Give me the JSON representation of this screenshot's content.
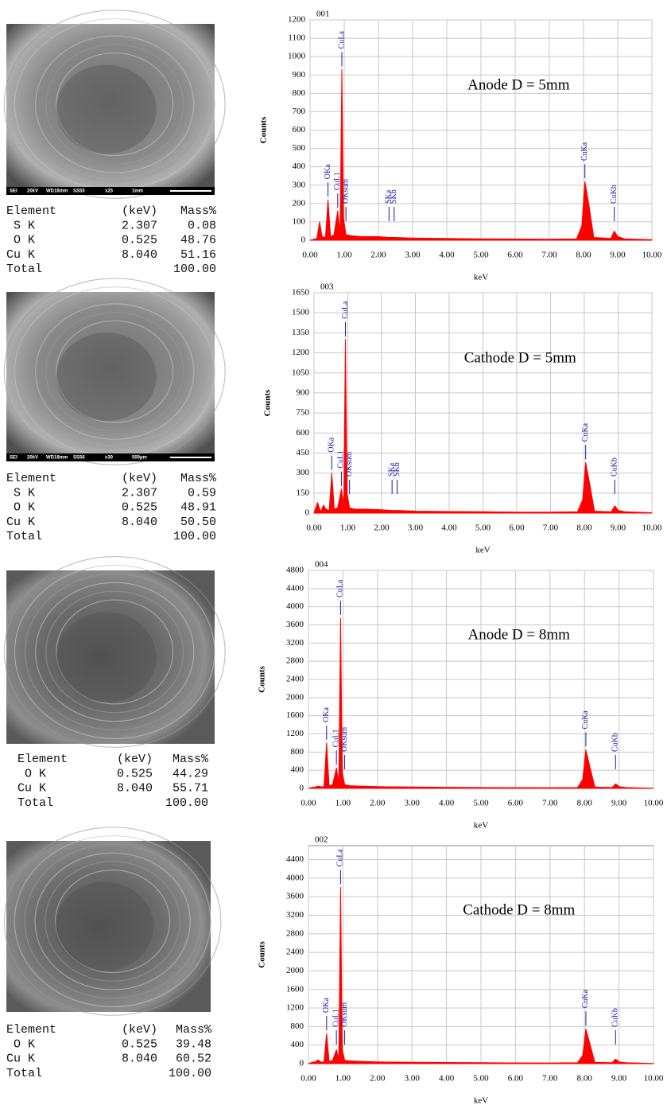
{
  "chart_data": [
    {
      "type": "area",
      "title": "001",
      "annotation": "Anode D = 5mm",
      "y_label": "Counts",
      "x_label": "keV",
      "color": "#ff0000",
      "peak_color": "#1a1aaa",
      "grid": true,
      "x": [
        0,
        0.1,
        0.2,
        0.28,
        0.35,
        0.45,
        0.525,
        0.6,
        0.7,
        0.81,
        0.88,
        0.93,
        0.98,
        1.05,
        1.2,
        1.5,
        2,
        2.3,
        2.5,
        3,
        4,
        5,
        6,
        7,
        7.8,
        7.95,
        8.04,
        8.15,
        8.3,
        8.8,
        8.9,
        9.0,
        9.2,
        10
      ],
      "values": [
        0,
        5,
        10,
        100,
        20,
        15,
        220,
        20,
        30,
        160,
        40,
        930,
        120,
        30,
        25,
        20,
        20,
        15,
        15,
        12,
        10,
        8,
        7,
        6,
        8,
        80,
        320,
        200,
        15,
        10,
        50,
        20,
        8,
        3
      ],
      "peaks": [
        {
          "label": "OKa",
          "x": 0.525
        },
        {
          "label": "CuL1",
          "x": 0.81
        },
        {
          "label": "CuLa",
          "x": 0.93
        },
        {
          "label": "OKsum",
          "x": 1.05
        },
        {
          "label": "SKa",
          "x": 2.31
        },
        {
          "label": "SKb",
          "x": 2.46
        },
        {
          "label": "CuKa",
          "x": 8.04
        },
        {
          "label": "CuKb",
          "x": 8.9
        }
      ],
      "xlim": [
        0,
        10
      ],
      "ylim": [
        0,
        1200
      ],
      "xticks": [
        {
          "value": 0,
          "label": "0.00"
        },
        {
          "value": 1,
          "label": "1.00"
        },
        {
          "value": 2,
          "label": "2.00"
        },
        {
          "value": 3,
          "label": "3.00"
        },
        {
          "value": 4,
          "label": "4.00"
        },
        {
          "value": 5,
          "label": "5.00"
        },
        {
          "value": 6,
          "label": "6.00"
        },
        {
          "value": 7,
          "label": "7.00"
        },
        {
          "value": 8,
          "label": "8.00"
        },
        {
          "value": 9,
          "label": "9.00"
        },
        {
          "value": 10,
          "label": "10.00"
        }
      ],
      "yticks": [
        0,
        100,
        200,
        300,
        400,
        500,
        600,
        700,
        800,
        900,
        1000,
        1100,
        1200
      ]
    },
    {
      "type": "area",
      "title": "003",
      "annotation": "Cathode D = 5mm",
      "y_label": "Counts",
      "x_label": "keV",
      "color": "#ff0000",
      "peak_color": "#1a1aaa",
      "grid": true,
      "x": [
        0,
        0.1,
        0.2,
        0.28,
        0.35,
        0.45,
        0.525,
        0.6,
        0.7,
        0.81,
        0.88,
        0.93,
        0.98,
        1.05,
        1.2,
        1.5,
        2,
        2.3,
        2.5,
        3,
        4,
        5,
        6,
        7,
        7.8,
        7.95,
        8.04,
        8.15,
        8.3,
        8.8,
        8.9,
        9.0,
        9.2,
        10
      ],
      "values": [
        0,
        80,
        10,
        60,
        30,
        20,
        300,
        30,
        40,
        180,
        60,
        1300,
        150,
        40,
        30,
        30,
        25,
        20,
        20,
        15,
        12,
        10,
        8,
        8,
        10,
        100,
        380,
        230,
        15,
        10,
        55,
        20,
        10,
        3
      ],
      "peaks": [
        {
          "label": "OKa",
          "x": 0.525
        },
        {
          "label": "CuL1",
          "x": 0.81
        },
        {
          "label": "CuLa",
          "x": 0.93
        },
        {
          "label": "OKsum",
          "x": 1.05
        },
        {
          "label": "SKa",
          "x": 2.31
        },
        {
          "label": "SKb",
          "x": 2.46
        },
        {
          "label": "CuKa",
          "x": 8.04
        },
        {
          "label": "CuKb",
          "x": 8.9
        }
      ],
      "xlim": [
        0,
        10
      ],
      "ylim": [
        0,
        1650
      ],
      "xticks": [
        {
          "value": 0,
          "label": "0.00"
        },
        {
          "value": 1,
          "label": "1.00"
        },
        {
          "value": 2,
          "label": "2.00"
        },
        {
          "value": 3,
          "label": "3.00"
        },
        {
          "value": 4,
          "label": "4.00"
        },
        {
          "value": 5,
          "label": "5.00"
        },
        {
          "value": 6,
          "label": "6.00"
        },
        {
          "value": 7,
          "label": "7.00"
        },
        {
          "value": 8,
          "label": "8.00"
        },
        {
          "value": 9,
          "label": "9.00"
        },
        {
          "value": 10,
          "label": "10.00"
        }
      ],
      "yticks": [
        0,
        150,
        300,
        450,
        600,
        750,
        900,
        1050,
        1200,
        1350,
        1500,
        1650
      ]
    },
    {
      "type": "area",
      "title": "004",
      "annotation": "Anode D = 8mm",
      "y_label": "Counts",
      "x_label": "keV",
      "color": "#ff0000",
      "peak_color": "#1a1aaa",
      "grid": true,
      "x": [
        0,
        0.1,
        0.2,
        0.28,
        0.35,
        0.45,
        0.525,
        0.6,
        0.7,
        0.81,
        0.88,
        0.93,
        0.98,
        1.05,
        1.2,
        1.5,
        2,
        2.3,
        2.5,
        3,
        4,
        5,
        6,
        7,
        7.8,
        7.95,
        8.04,
        8.15,
        8.3,
        8.8,
        8.9,
        9.0,
        9.2,
        10
      ],
      "values": [
        0,
        20,
        30,
        50,
        40,
        30,
        1000,
        60,
        80,
        450,
        120,
        3750,
        350,
        80,
        60,
        50,
        40,
        35,
        35,
        30,
        25,
        20,
        18,
        15,
        20,
        200,
        850,
        500,
        30,
        20,
        100,
        40,
        20,
        5
      ],
      "peaks": [
        {
          "label": "OKa",
          "x": 0.525
        },
        {
          "label": "CuL1",
          "x": 0.81
        },
        {
          "label": "CuLa",
          "x": 0.93
        },
        {
          "label": "OKsum",
          "x": 1.05
        },
        {
          "label": "CuKa",
          "x": 8.04
        },
        {
          "label": "CuKb",
          "x": 8.9
        }
      ],
      "xlim": [
        0,
        10
      ],
      "ylim": [
        0,
        4800
      ],
      "xticks": [
        {
          "value": 0,
          "label": "0.00"
        },
        {
          "value": 1,
          "label": "1.00"
        },
        {
          "value": 2,
          "label": "2.00"
        },
        {
          "value": 3,
          "label": "3.00"
        },
        {
          "value": 4,
          "label": "4.00"
        },
        {
          "value": 5,
          "label": "5.00"
        },
        {
          "value": 6,
          "label": "6.00"
        },
        {
          "value": 7,
          "label": "7.00"
        },
        {
          "value": 8,
          "label": "8.00"
        },
        {
          "value": 9,
          "label": "9.00"
        },
        {
          "value": 10,
          "label": "10.00"
        }
      ],
      "yticks": [
        0,
        400,
        800,
        1200,
        1600,
        2000,
        2400,
        2800,
        3200,
        3600,
        4000,
        4400,
        4800
      ]
    },
    {
      "type": "area",
      "title": "002",
      "annotation": "Cathode D = 8mm",
      "y_label": "Counts",
      "x_label": "keV",
      "color": "#ff0000",
      "peak_color": "#1a1aaa",
      "grid": true,
      "x": [
        0,
        0.1,
        0.2,
        0.28,
        0.35,
        0.45,
        0.525,
        0.6,
        0.7,
        0.81,
        0.88,
        0.93,
        0.98,
        1.05,
        1.2,
        1.5,
        2,
        2.3,
        2.5,
        3,
        4,
        5,
        6,
        7,
        7.8,
        7.95,
        8.04,
        8.15,
        8.3,
        8.8,
        8.9,
        9.0,
        9.2,
        10
      ],
      "values": [
        0,
        30,
        40,
        80,
        40,
        30,
        650,
        50,
        70,
        300,
        90,
        3800,
        300,
        70,
        60,
        50,
        40,
        35,
        35,
        30,
        25,
        20,
        18,
        15,
        20,
        180,
        750,
        450,
        30,
        20,
        100,
        40,
        20,
        5
      ],
      "peaks": [
        {
          "label": "OKa",
          "x": 0.525
        },
        {
          "label": "CuL1",
          "x": 0.81
        },
        {
          "label": "CuLa",
          "x": 0.93
        },
        {
          "label": "OKsum",
          "x": 1.05
        },
        {
          "label": "CuKa",
          "x": 8.04
        },
        {
          "label": "CuKb",
          "x": 8.9
        }
      ],
      "xlim": [
        0,
        10
      ],
      "ylim": [
        0,
        4700
      ],
      "xticks": [
        {
          "value": 0,
          "label": "0.00"
        },
        {
          "value": 1,
          "label": "1.00"
        },
        {
          "value": 2,
          "label": "2.00"
        },
        {
          "value": 3,
          "label": "3.00"
        },
        {
          "value": 4,
          "label": "4.00"
        },
        {
          "value": 5,
          "label": "5.00"
        },
        {
          "value": 6,
          "label": "6.00"
        },
        {
          "value": 7,
          "label": "7.00"
        },
        {
          "value": 8,
          "label": "8.00"
        },
        {
          "value": 9,
          "label": "9.00"
        },
        {
          "value": 10,
          "label": "10.00"
        }
      ],
      "yticks": [
        0,
        400,
        800,
        1200,
        1600,
        2000,
        2400,
        2800,
        3200,
        3600,
        4000,
        4400
      ]
    }
  ],
  "images": [
    {
      "caption": [
        "SEI",
        "20kV",
        "WD18mm",
        "SS55",
        "x25",
        "1mm"
      ]
    },
    {
      "caption": [
        "SEI",
        "20kV",
        "WD18mm",
        "SS56",
        "x30",
        "500µm"
      ]
    },
    {},
    {}
  ],
  "tables": [
    {
      "header": [
        "Element",
        "(keV)",
        "Mass%"
      ],
      "rows": [
        [
          "S K",
          "2.307",
          "0.08"
        ],
        [
          "O K",
          "0.525",
          "48.76"
        ],
        [
          "Cu K",
          "8.040",
          "51.16"
        ]
      ],
      "total": {
        "label": "Total",
        "mass": "100.00"
      }
    },
    {
      "header": [
        "Element",
        "(keV)",
        "Mass%"
      ],
      "rows": [
        [
          "S K",
          "2.307",
          "0.59"
        ],
        [
          "O K",
          "0.525",
          "48.91"
        ],
        [
          "Cu K",
          "8.040",
          "50.50"
        ]
      ],
      "total": {
        "label": "Total",
        "mass": "100.00"
      }
    },
    {
      "header": [
        "Element",
        "(keV)",
        "Mass%"
      ],
      "rows": [
        [
          "O K",
          "0.525",
          "44.29"
        ],
        [
          "Cu K",
          "8.040",
          "55.71"
        ]
      ],
      "total": {
        "label": "Total",
        "mass": "100.00"
      }
    },
    {
      "header": [
        "Element",
        "(keV)",
        "Mass%"
      ],
      "rows": [
        [
          "O K",
          "0.525",
          "39.48"
        ],
        [
          "Cu K",
          "8.040",
          "60.52"
        ]
      ],
      "total": {
        "label": "Total",
        "mass": "100.00"
      }
    }
  ]
}
